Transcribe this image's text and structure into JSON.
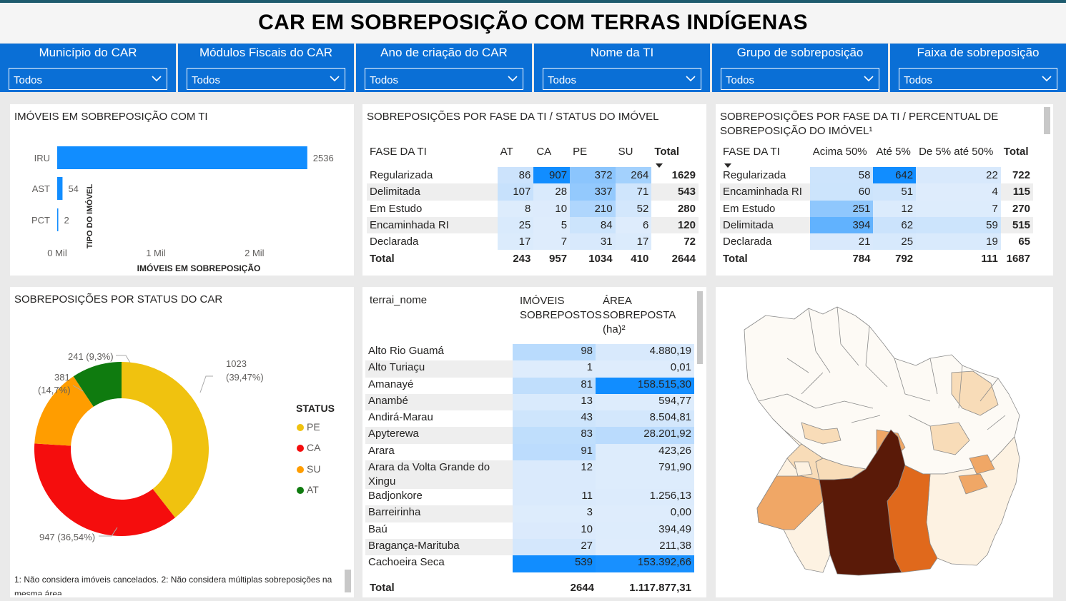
{
  "title": "CAR EM SOBREPOSIÇÃO COM TERRAS INDÍGENAS",
  "filters": [
    {
      "label": "Município do CAR",
      "value": "Todos"
    },
    {
      "label": "Módulos Fiscais do CAR",
      "value": "Todos"
    },
    {
      "label": "Ano de criação do CAR",
      "value": "Todos"
    },
    {
      "label": "Nome da TI",
      "value": "Todos"
    },
    {
      "label": "Grupo de sobreposição",
      "value": "Todos"
    },
    {
      "label": "Faixa de sobreposição",
      "value": "Todos"
    }
  ],
  "bar_card": {
    "title": "IMÓVEIS EM SOBREPOSIÇÃO COM TI",
    "chart_data": {
      "type": "bar",
      "orientation": "horizontal",
      "categories": [
        "IRU",
        "AST",
        "PCT"
      ],
      "values": [
        2536,
        54,
        2
      ],
      "value_labels": [
        "2536",
        "54",
        "2"
      ],
      "xlabel": "IMÓVEIS EM SOBREPOSIÇÃO",
      "ylabel": "TIPO DO IMÓVEL",
      "xlim": [
        0,
        2900
      ],
      "xticks": [
        0,
        1000,
        2000
      ],
      "xtick_labels": [
        "0 Mil",
        "1 Mil",
        "2 Mil"
      ],
      "color": "#118dff"
    }
  },
  "matrix1": {
    "title": "SOBREPOSIÇÕES POR FASE DA TI / STATUS DO IMÓVEL",
    "headers": [
      "FASE DA TI",
      "AT",
      "CA",
      "PE",
      "SU",
      "Total"
    ],
    "rows": [
      {
        "name": "Regularizada",
        "vals": [
          "86",
          "907",
          "372",
          "264"
        ],
        "total": "1629"
      },
      {
        "name": "Delimitada",
        "vals": [
          "107",
          "28",
          "337",
          "71"
        ],
        "total": "543"
      },
      {
        "name": "Em Estudo",
        "vals": [
          "8",
          "10",
          "210",
          "52"
        ],
        "total": "280"
      },
      {
        "name": "Encaminhada RI",
        "vals": [
          "25",
          "5",
          "84",
          "6"
        ],
        "total": "120"
      },
      {
        "name": "Declarada",
        "vals": [
          "17",
          "7",
          "31",
          "17"
        ],
        "total": "72"
      }
    ],
    "total_row": {
      "name": "Total",
      "vals": [
        "243",
        "957",
        "1034",
        "410"
      ],
      "total": "2644"
    }
  },
  "matrix2": {
    "title_line1": "SOBREPOSIÇÕES POR FASE DA TI / PERCENTUAL DE",
    "title_line2": "SOBREPOSIÇÃO DO IMÓVEL¹",
    "headers": [
      "FASE DA TI",
      "Acima 50%",
      "Até 5%",
      "De 5% até 50%",
      "Total"
    ],
    "rows": [
      {
        "name": "Regularizada",
        "vals": [
          "58",
          "642",
          "22"
        ],
        "total": "722"
      },
      {
        "name": "Encaminhada RI",
        "vals": [
          "60",
          "51",
          "4"
        ],
        "total": "115"
      },
      {
        "name": "Em Estudo",
        "vals": [
          "251",
          "12",
          "7"
        ],
        "total": "270"
      },
      {
        "name": "Delimitada",
        "vals": [
          "394",
          "62",
          "59"
        ],
        "total": "515"
      },
      {
        "name": "Declarada",
        "vals": [
          "21",
          "25",
          "19"
        ],
        "total": "65"
      }
    ],
    "total_row": {
      "name": "Total",
      "vals": [
        "784",
        "792",
        "111"
      ],
      "total": "1687"
    }
  },
  "donut_card": {
    "title": "SOBREPOSIÇÕES POR STATUS DO CAR",
    "legend_title": "STATUS",
    "chart_data": {
      "type": "pie",
      "donut": true,
      "categories": [
        "PE",
        "CA",
        "SU",
        "AT"
      ],
      "values": [
        1023,
        947,
        381,
        241
      ],
      "percent_labels": [
        "(39,47%)",
        "(36,54%)",
        "(14,7%)",
        "(9,3%)"
      ],
      "value_labels": [
        "1023",
        "947",
        "381",
        "241"
      ],
      "colors": [
        "#f0c20f",
        "#f50d0d",
        "#ff9d00",
        "#0f7b0f"
      ]
    },
    "labels": {
      "pe_line1": "1023",
      "pe_line2": "(39,47%)",
      "ca": "947 (36,54%)",
      "su_line1": "381",
      "su_line2": "(14,7%)",
      "at": "241 (9,3%)"
    },
    "footnote_line1": "1: Não considera imóveis cancelados. 2: Não considera múltiplas sobreposições na",
    "footnote_line2": "mesma área."
  },
  "ti_table": {
    "headers": {
      "name": "terrai_nome",
      "imoveis_1": "IMÓVEIS",
      "imoveis_2": "SOBREPOSTOS",
      "area_1": "ÁREA",
      "area_2": "SOBREPOSTA",
      "area_3": "(ha)²"
    },
    "rows": [
      {
        "name": "Alto Rio Guamá",
        "imoveis": "98",
        "area": "4.880,19"
      },
      {
        "name": "Alto Turiaçu",
        "imoveis": "1",
        "area": "0,01"
      },
      {
        "name": "Amanayé",
        "imoveis": "81",
        "area": "158.515,30"
      },
      {
        "name": "Anambé",
        "imoveis": "13",
        "area": "594,77"
      },
      {
        "name": "Andirá-Marau",
        "imoveis": "43",
        "area": "8.504,81"
      },
      {
        "name": "Apyterewa",
        "imoveis": "83",
        "area": "28.201,92"
      },
      {
        "name": "Arara",
        "imoveis": "91",
        "area": "423,26"
      },
      {
        "name": "Arara da Volta Grande do Xingu",
        "imoveis": "12",
        "area": "791,90"
      },
      {
        "name": "Badjonkore",
        "imoveis": "11",
        "area": "1.256,13"
      },
      {
        "name": "Barreirinha",
        "imoveis": "3",
        "area": "0,00"
      },
      {
        "name": "Baú",
        "imoveis": "10",
        "area": "394,49"
      },
      {
        "name": "Bragança-Marituba",
        "imoveis": "27",
        "area": "211,38"
      },
      {
        "name": "Cachoeira Seca",
        "imoveis": "539",
        "area": "153.392,66"
      }
    ],
    "total": {
      "name": "Total",
      "imoveis": "2644",
      "area": "1.117.877,31"
    }
  },
  "map": {
    "colors": {
      "dark": "#5a1a08",
      "orange": "#e0691c",
      "mid": "#f0a766",
      "light": "#f8dcb8",
      "pale": "#fdf2e2",
      "border": "#8a8a8a"
    }
  },
  "icons": {
    "dropdown": "chevron-down-icon",
    "sort": "sort-desc-icon"
  }
}
